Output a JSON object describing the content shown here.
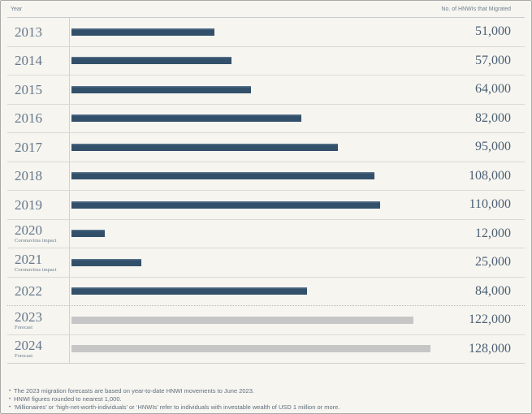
{
  "header": {
    "left_label": "Year",
    "right_label": "No. of HNWIs that Migrated"
  },
  "colors": {
    "bar": "#33506b",
    "forecast_bar": "#c6c6c6",
    "background": "#f6f5f0"
  },
  "chart_data": {
    "type": "bar",
    "orientation": "horizontal",
    "title": "",
    "xlabel": "No. of HNWIs that Migrated",
    "ylabel": "Year",
    "max_value": 128000,
    "categories": [
      "2013",
      "2014",
      "2015",
      "2016",
      "2017",
      "2018",
      "2019",
      "2020",
      "2021",
      "2022",
      "2023",
      "2024"
    ],
    "values": [
      51000,
      57000,
      64000,
      82000,
      95000,
      108000,
      110000,
      12000,
      25000,
      84000,
      122000,
      128000
    ],
    "rows": [
      {
        "year": "2013",
        "sublabel": "",
        "value": 51000,
        "value_label": "51,000",
        "style": "actual"
      },
      {
        "year": "2014",
        "sublabel": "",
        "value": 57000,
        "value_label": "57,000",
        "style": "actual"
      },
      {
        "year": "2015",
        "sublabel": "",
        "value": 64000,
        "value_label": "64,000",
        "style": "actual"
      },
      {
        "year": "2016",
        "sublabel": "",
        "value": 82000,
        "value_label": "82,000",
        "style": "actual"
      },
      {
        "year": "2017",
        "sublabel": "",
        "value": 95000,
        "value_label": "95,000",
        "style": "actual"
      },
      {
        "year": "2018",
        "sublabel": "",
        "value": 108000,
        "value_label": "108,000",
        "style": "actual"
      },
      {
        "year": "2019",
        "sublabel": "",
        "value": 110000,
        "value_label": "110,000",
        "style": "actual"
      },
      {
        "year": "2020",
        "sublabel": "Coronavirus impact",
        "value": 12000,
        "value_label": "12,000",
        "style": "actual"
      },
      {
        "year": "2021",
        "sublabel": "Coronavirus impact",
        "value": 25000,
        "value_label": "25,000",
        "style": "actual"
      },
      {
        "year": "2022",
        "sublabel": "",
        "value": 84000,
        "value_label": "84,000",
        "style": "actual",
        "divider": "dotted"
      },
      {
        "year": "2023",
        "sublabel": "Forecast",
        "value": 122000,
        "value_label": "122,000",
        "style": "forecast"
      },
      {
        "year": "2024",
        "sublabel": "Forecast",
        "value": 128000,
        "value_label": "128,000",
        "style": "forecast"
      }
    ]
  },
  "footnotes": [
    "The 2023 migration forecasts are based on year-to-date HNWI movements to June 2023.",
    "HNWI figures rounded to nearest 1,000.",
    "‘Millionaires’ or ‘high-net-worth-individuals’ or ‘HNWIs’ refer to individuals with investable wealth of USD 1 million or more."
  ]
}
